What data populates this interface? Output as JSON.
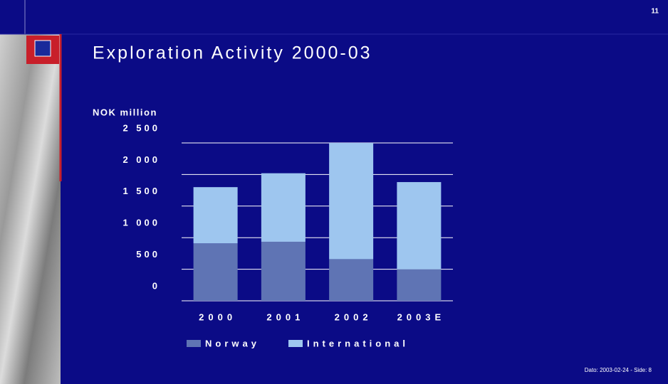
{
  "page": {
    "number": "11",
    "footer": "Dato: 2003-02-24 - Side: 8"
  },
  "chart_data": {
    "type": "stacked-bar",
    "title": "Exploration Activity 2000-03",
    "y_label": "NOK million",
    "categories": [
      "2000",
      "2001",
      "2002",
      "2003E"
    ],
    "series": [
      {
        "name": "Norway",
        "color": "#5f74b4",
        "values": [
          910,
          935,
          660,
          500
        ]
      },
      {
        "name": "International",
        "color": "#9ec6ef",
        "values": [
          890,
          1085,
          1840,
          1380
        ]
      }
    ],
    "ylim": [
      0,
      2500
    ],
    "yticks": [
      0,
      {
        "value": 500,
        "label": "500"
      },
      {
        "value": 1000,
        "label": "1 000"
      },
      {
        "value": 1500,
        "label": "1 500"
      },
      {
        "value": 2000,
        "label": "2 000"
      },
      {
        "value": 2500,
        "label": "2 500"
      }
    ],
    "grid": true
  }
}
